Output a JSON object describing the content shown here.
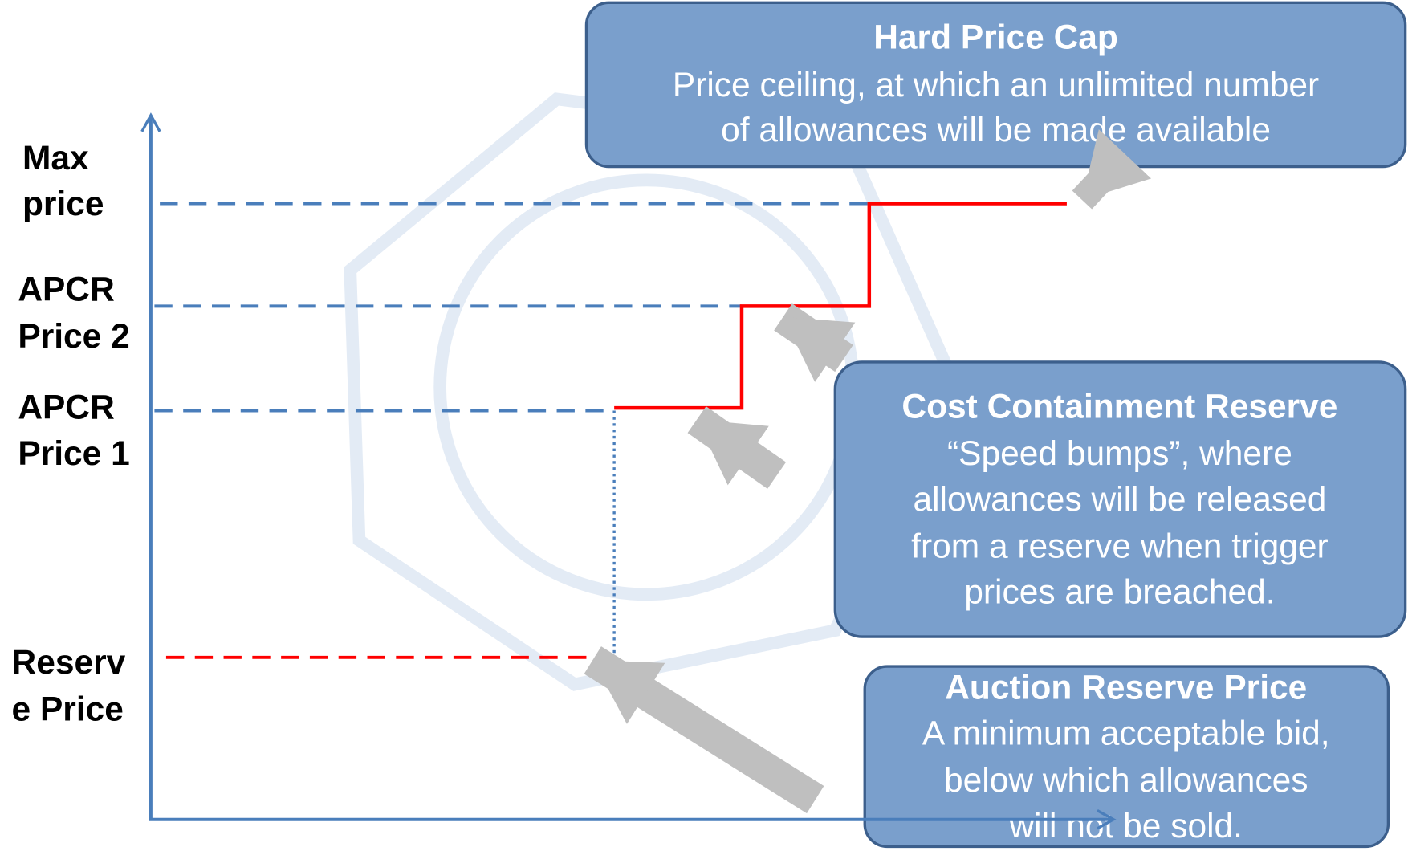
{
  "axis_labels": [
    {
      "lines": [
        "Max",
        "price"
      ]
    },
    {
      "lines": [
        "APCR",
        "Price 2"
      ]
    },
    {
      "lines": [
        "APCR",
        "Price 1"
      ]
    },
    {
      "lines": [
        "Reserv",
        "e Price"
      ]
    }
  ],
  "callouts": [
    {
      "title": "Hard Price Cap",
      "lines": [
        "Price ceiling, at which an unlimited number",
        "of allowances will be made available"
      ]
    },
    {
      "title": "Cost Containment Reserve",
      "lines": [
        "“Speed bumps”, where",
        "allowances will be released",
        "from a reserve when trigger",
        "prices are breached."
      ]
    },
    {
      "title": "Auction Reserve Price",
      "lines": [
        "A minimum acceptable bid,",
        "below which allowances",
        "will not be sold."
      ]
    }
  ]
}
